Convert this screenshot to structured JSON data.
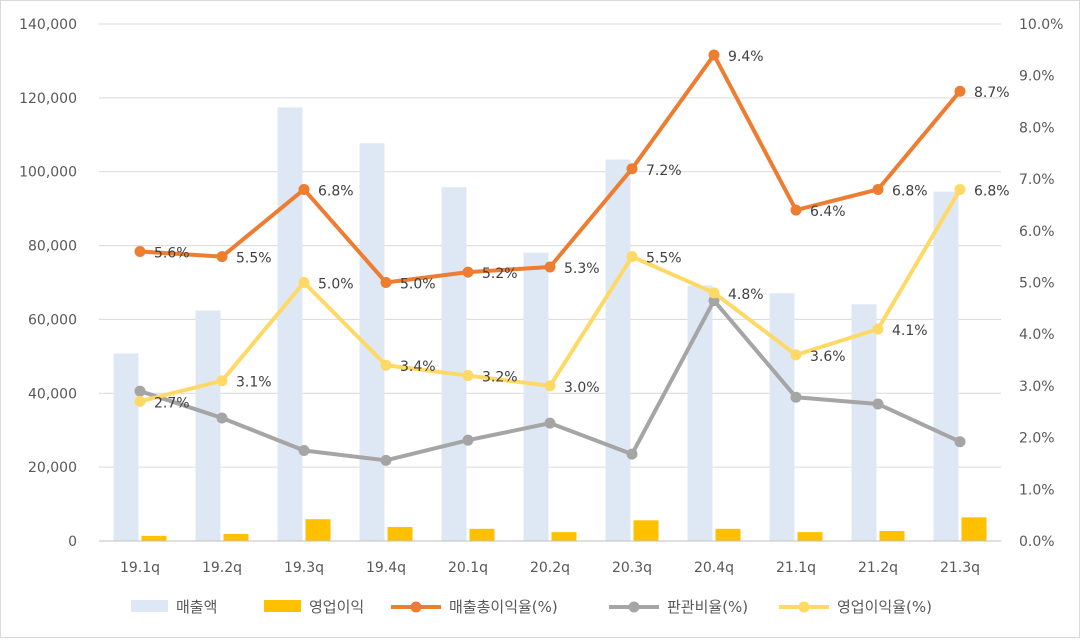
{
  "chart_data": {
    "type": "bar",
    "categories": [
      "19.1q",
      "19.2q",
      "19.3q",
      "19.4q",
      "20.1q",
      "20.2q",
      "20.3q",
      "20.4q",
      "21.1q",
      "21.2q",
      "21.3q"
    ],
    "bar_series": [
      {
        "name": "매출액",
        "color": "#dde8f4",
        "values": [
          50800,
          62400,
          117400,
          107700,
          95800,
          78100,
          103300,
          69200,
          67100,
          64100,
          94600
        ]
      },
      {
        "name": "영업이익",
        "color": "#ffc000",
        "values": [
          1400,
          1900,
          5900,
          3800,
          3300,
          2400,
          5600,
          3300,
          2400,
          2700,
          6400
        ]
      }
    ],
    "line_series": [
      {
        "name": "매출총이익율(%)",
        "color": "#ed7d31",
        "values": [
          5.6,
          5.5,
          6.8,
          5.0,
          5.2,
          5.3,
          7.2,
          9.4,
          6.4,
          6.8,
          8.7
        ],
        "labels": [
          "5.6%",
          "5.5%",
          "6.8%",
          "5.0%",
          "5.2%",
          "5.3%",
          "7.2%",
          "9.4%",
          "6.4%",
          "6.8%",
          "8.7%"
        ]
      },
      {
        "name": "판관비율(%)",
        "color": "#a5a5a5",
        "values": [
          2.9,
          2.38,
          1.75,
          1.56,
          1.95,
          2.28,
          1.68,
          4.65,
          2.78,
          2.65,
          1.92
        ],
        "labels": []
      },
      {
        "name": "영업이익율(%)",
        "color": "#ffd966",
        "values": [
          2.7,
          3.1,
          5.0,
          3.4,
          3.2,
          3.0,
          5.5,
          4.8,
          3.6,
          4.1,
          6.8
        ],
        "labels": [
          "2.7%",
          "3.1%",
          "5.0%",
          "3.4%",
          "3.2%",
          "3.0%",
          "5.5%",
          "4.8%",
          "3.6%",
          "4.1%",
          "6.8%"
        ]
      }
    ],
    "y_left": {
      "min": 0,
      "max": 140000,
      "step": 20000,
      "ticks": [
        "0",
        "20,000",
        "40,000",
        "60,000",
        "80,000",
        "100,000",
        "120,000",
        "140,000"
      ]
    },
    "y_right": {
      "min": 0,
      "max": 10,
      "step": 1,
      "ticks": [
        "0.0%",
        "1.0%",
        "2.0%",
        "3.0%",
        "4.0%",
        "5.0%",
        "6.0%",
        "7.0%",
        "8.0%",
        "9.0%",
        "10.0%"
      ]
    },
    "grid": true,
    "legend_position": "bottom"
  }
}
